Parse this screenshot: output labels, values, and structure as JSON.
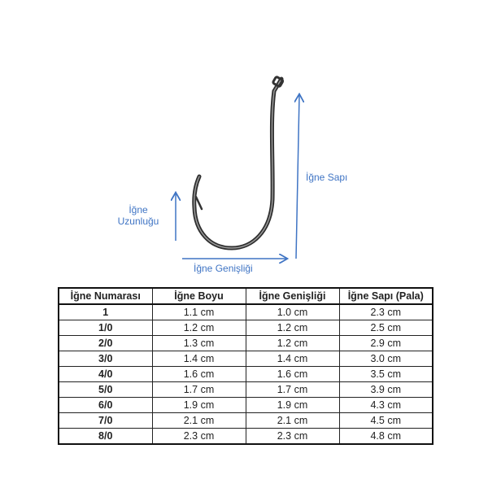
{
  "labels": {
    "length": [
      "İğne",
      "Uzunluğu"
    ],
    "shank": "İğne Sapı",
    "width": "İğne Genişliği"
  },
  "colors": {
    "arrow": "#3f74c4",
    "hook": "#3a3a3a"
  },
  "table": {
    "headers": [
      "İğne Numarası",
      "İğne Boyu",
      "İğne Genişliği",
      "İğne Sapı (Pala)"
    ],
    "rows": [
      [
        "1",
        "1.1 cm",
        "1.0 cm",
        "2.3 cm"
      ],
      [
        "1/0",
        "1.2 cm",
        "1.2 cm",
        "2.5 cm"
      ],
      [
        "2/0",
        "1.3 cm",
        "1.2 cm",
        "2.9 cm"
      ],
      [
        "3/0",
        "1.4 cm",
        "1.4 cm",
        "3.0 cm"
      ],
      [
        "4/0",
        "1.6 cm",
        "1.6 cm",
        "3.5 cm"
      ],
      [
        "5/0",
        "1.7 cm",
        "1.7 cm",
        "3.9 cm"
      ],
      [
        "6/0",
        "1.9 cm",
        "1.9 cm",
        "4.3 cm"
      ],
      [
        "7/0",
        "2.1 cm",
        "2.1 cm",
        "4.5 cm"
      ],
      [
        "8/0",
        "2.3 cm",
        "2.3 cm",
        "4.8 cm"
      ]
    ]
  }
}
